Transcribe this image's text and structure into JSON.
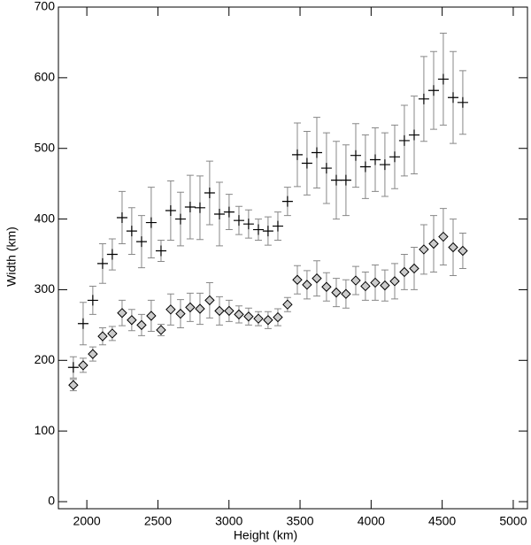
{
  "chart_data": {
    "type": "scatter",
    "x_label": "Height (km)",
    "y_label": "Width (km)",
    "x": [
      1905,
      1974,
      2042,
      2111,
      2179,
      2248,
      2316,
      2385,
      2453,
      2522,
      2590,
      2659,
      2727,
      2796,
      2864,
      2933,
      3001,
      3070,
      3138,
      3207,
      3275,
      3344,
      3412,
      3481,
      3549,
      3618,
      3686,
      3755,
      3823,
      3892,
      3960,
      4029,
      4097,
      4166,
      4234,
      4303,
      4371,
      4440,
      4508,
      4577,
      4645
    ],
    "series": [
      {
        "marker": "plus",
        "color": "#000000",
        "error_color": "#888888",
        "values": [
          190,
          252,
          285,
          337,
          350,
          402,
          383,
          368,
          395,
          355,
          412,
          400,
          417,
          416,
          437,
          407,
          410,
          398,
          393,
          385,
          383,
          390,
          425,
          491,
          479,
          494,
          472,
          455,
          455,
          490,
          474,
          484,
          477,
          488,
          511,
          519,
          570,
          582,
          598,
          572,
          565
        ],
        "errors": [
          15,
          30,
          20,
          28,
          22,
          37,
          33,
          37,
          50,
          15,
          42,
          38,
          45,
          45,
          45,
          45,
          25,
          20,
          20,
          15,
          20,
          20,
          20,
          45,
          45,
          50,
          50,
          55,
          50,
          45,
          45,
          45,
          45,
          45,
          50,
          55,
          60,
          55,
          65,
          65,
          45
        ]
      },
      {
        "marker": "diamond",
        "color": "#cccccc",
        "error_color": "#888888",
        "values": [
          165,
          193,
          209,
          234,
          238,
          267,
          257,
          250,
          263,
          243,
          272,
          266,
          275,
          273,
          285,
          270,
          270,
          265,
          262,
          259,
          257,
          261,
          279,
          314,
          307,
          316,
          304,
          296,
          294,
          313,
          305,
          310,
          306,
          312,
          325,
          330,
          357,
          365,
          375,
          360,
          355
        ],
        "errors": [
          8,
          10,
          10,
          12,
          10,
          18,
          15,
          15,
          22,
          8,
          22,
          20,
          20,
          22,
          25,
          20,
          15,
          12,
          12,
          10,
          12,
          12,
          10,
          20,
          20,
          25,
          20,
          20,
          20,
          20,
          20,
          25,
          22,
          25,
          25,
          30,
          35,
          40,
          40,
          40,
          25
        ]
      }
    ],
    "xlim": [
      1800,
      5100
    ],
    "ylim": [
      -10,
      700
    ],
    "xticks": [
      2000,
      2500,
      3000,
      3500,
      4000,
      4500,
      5000
    ],
    "yticks": [
      0,
      100,
      200,
      300,
      400,
      500,
      600,
      700
    ]
  }
}
